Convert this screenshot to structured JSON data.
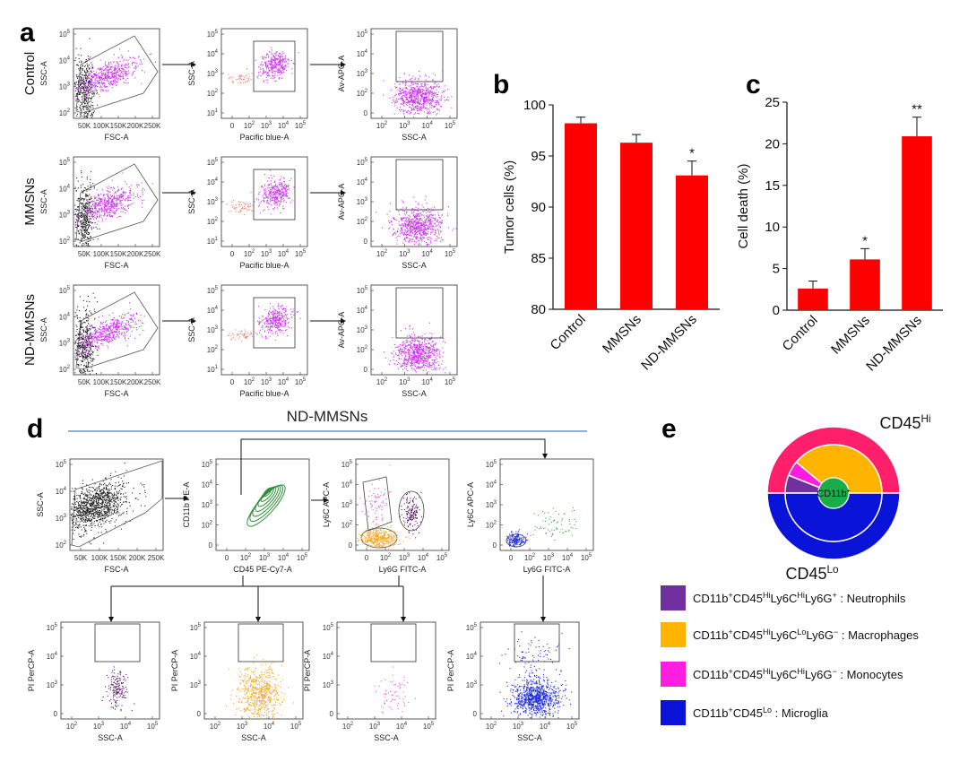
{
  "panels": {
    "a": "a",
    "b": "b",
    "c": "c",
    "d": "d",
    "e": "e"
  },
  "flow_a": {
    "rows": [
      "Control",
      "MMSNs",
      "ND-MMSNs"
    ],
    "plot1": {
      "ylabel": "SSC-A",
      "xlabel": "FSC-A",
      "yticks": [
        "10^5",
        "10^4",
        "10^3",
        "10^2"
      ],
      "xticks": [
        "50K",
        "100K",
        "150K",
        "200K",
        "250K"
      ]
    },
    "plot2": {
      "ylabel": "SSC-A",
      "xlabel": "Pacific blue-A",
      "yticks": [
        "10^5",
        "10^4",
        "10^3",
        "10^2",
        "10^1"
      ],
      "xticks": [
        "0",
        "10^2",
        "10^3",
        "10^4",
        "10^5"
      ]
    },
    "plot3": {
      "ylabel": "Av-APC-A",
      "xlabel": "SSC-A",
      "yticks": [
        "10^5",
        "10^4",
        "10^3",
        "10^2",
        "0"
      ],
      "xticks": [
        "10^2",
        "10^3",
        "10^4",
        "10^5"
      ]
    }
  },
  "chart_data": [
    {
      "id": "b",
      "type": "bar",
      "categories": [
        "Control",
        "MMSNs",
        "ND-MMSNs"
      ],
      "values": [
        98.2,
        96.3,
        93.1
      ],
      "errors": [
        0.6,
        0.8,
        1.4
      ],
      "significance": [
        "",
        "",
        "*"
      ],
      "ylabel": "Tumor cells (%)",
      "ylim": [
        80,
        100
      ],
      "yticks": [
        80,
        85,
        90,
        95,
        100
      ],
      "color": "#ff0000"
    },
    {
      "id": "c",
      "type": "bar",
      "categories": [
        "Control",
        "MMSNs",
        "ND-MMSNs"
      ],
      "values": [
        2.6,
        6.1,
        20.9
      ],
      "errors": [
        0.9,
        1.3,
        2.3
      ],
      "significance": [
        "",
        "*",
        "**"
      ],
      "ylabel": "Cell death (%)",
      "ylim": [
        0,
        25
      ],
      "yticks": [
        0,
        5,
        10,
        15,
        20,
        25
      ],
      "color": "#ff0000"
    },
    {
      "id": "e",
      "type": "pie",
      "title_outer_hi": "CD45",
      "title_outer_hi_sup": "Hi",
      "title_outer_lo": "CD45",
      "title_outer_lo_sup": "Lo",
      "center_label": "CD11b",
      "center_label_sup": "+",
      "outer_ring": [
        {
          "name": "CD45Hi",
          "value": 0.5,
          "color": "#ff1f6b"
        },
        {
          "name": "CD45Lo",
          "value": 0.5,
          "color": "#0a14d8"
        }
      ],
      "inner_ring": [
        {
          "name": "Neutrophils",
          "value": 0.06,
          "color": "#7030a0"
        },
        {
          "name": "Monocytes",
          "value": 0.05,
          "color": "#ff1ee0"
        },
        {
          "name": "Macrophages",
          "value": 0.39,
          "color": "#ffb400"
        },
        {
          "name": "Microglia",
          "value": 0.5,
          "color": "#0a14d8"
        }
      ],
      "legend": [
        {
          "color": "#7030a0",
          "parts": [
            [
              "CD11b",
              ""
            ],
            [
              "+",
              "sup"
            ],
            [
              "CD45",
              ""
            ],
            [
              "Hi",
              "sup"
            ],
            [
              "Ly6C",
              ""
            ],
            [
              "Hi",
              "sup"
            ],
            [
              "Ly6G",
              ""
            ],
            [
              "+",
              "sup"
            ],
            [
              " : Neutrophils",
              ""
            ]
          ]
        },
        {
          "color": "#ffb400",
          "parts": [
            [
              "CD11b",
              ""
            ],
            [
              "+",
              "sup"
            ],
            [
              "CD45",
              ""
            ],
            [
              "Hi",
              "sup"
            ],
            [
              "Ly6C",
              ""
            ],
            [
              "Lo",
              "sup"
            ],
            [
              "Ly6G",
              ""
            ],
            [
              "−",
              "sup"
            ],
            [
              " : Macrophages",
              ""
            ]
          ]
        },
        {
          "color": "#ff1ee0",
          "parts": [
            [
              "CD11b",
              ""
            ],
            [
              "+",
              "sup"
            ],
            [
              "CD45",
              ""
            ],
            [
              "Hi",
              "sup"
            ],
            [
              "Ly6C",
              ""
            ],
            [
              "Hi",
              "sup"
            ],
            [
              "Ly6G",
              ""
            ],
            [
              "−",
              "sup"
            ],
            [
              " : Monocytes",
              ""
            ]
          ]
        },
        {
          "color": "#0a14d8",
          "parts": [
            [
              "CD11b",
              ""
            ],
            [
              "+",
              "sup"
            ],
            [
              "CD45",
              ""
            ],
            [
              "Lo",
              "sup"
            ],
            [
              " : Microglia",
              ""
            ]
          ]
        }
      ]
    }
  ],
  "flow_d": {
    "title": "ND-MMSNs",
    "top": [
      {
        "ylabel": "SSC-A",
        "xlabel": "FSC-A",
        "yticks": [
          "10^5",
          "10^4",
          "10^3",
          "10^2"
        ],
        "xticks": [
          "50K",
          "100K",
          "150K",
          "200K",
          "250K"
        ]
      },
      {
        "ylabel": "CD11b PE-A",
        "xlabel": "CD45 PE-Cy7-A",
        "yticks": [
          "10^5",
          "10^4",
          "10^3",
          "10^2",
          "0"
        ],
        "xticks": [
          "0",
          "10^2",
          "10^3",
          "10^4",
          "10^5"
        ]
      },
      {
        "ylabel": "Ly6C APC-A",
        "xlabel": "Ly6G FITC-A",
        "yticks": [
          "10^5",
          "10^4",
          "10^3",
          "10^2",
          "0"
        ],
        "xticks": [
          "0",
          "10^2",
          "10^3",
          "10^4",
          "10^5"
        ]
      },
      {
        "ylabel": "Ly6C APC-A",
        "xlabel": "Ly6G FITC-A",
        "yticks": [
          "10^5",
          "10^4",
          "10^3",
          "10^2",
          "0"
        ],
        "xticks": [
          "0",
          "10^2",
          "10^3",
          "10^4",
          "10^5"
        ]
      }
    ],
    "bottom": [
      {
        "ylabel": "PI PerCP-A",
        "xlabel": "SSC-A",
        "yticks": [
          "10^5",
          "10^4",
          "10^3",
          "0"
        ],
        "xticks": [
          "10^2",
          "10^3",
          "10^4",
          "10^5"
        ]
      },
      {
        "ylabel": "PI PerCP-A",
        "xlabel": "SSC-A",
        "yticks": [
          "10^5",
          "10^4",
          "10^3",
          "0"
        ],
        "xticks": [
          "10^2",
          "10^3",
          "10^4",
          "10^5"
        ]
      },
      {
        "ylabel": "PI PerCP-A",
        "xlabel": "SSC-A",
        "yticks": [
          "10^5",
          "10^4",
          "10^3",
          "0"
        ],
        "xticks": [
          "10^2",
          "10^3",
          "10^4",
          "10^5"
        ]
      },
      {
        "ylabel": "PI PerCP-A",
        "xlabel": "SSC-A",
        "yticks": [
          "10^5",
          "10^4",
          "10^3",
          "0"
        ],
        "xticks": [
          "10^2",
          "10^3",
          "10^4",
          "10^5"
        ]
      }
    ]
  },
  "colors": {
    "magenta": "#cc33ee",
    "black": "#222222",
    "salmon": "#f08070",
    "green": "#2f8f3a",
    "purple": "#5a1a6a",
    "orange": "#f5a623",
    "pink": "#e060d0",
    "blue": "#1e2cd8",
    "bar": "#ff0000"
  }
}
